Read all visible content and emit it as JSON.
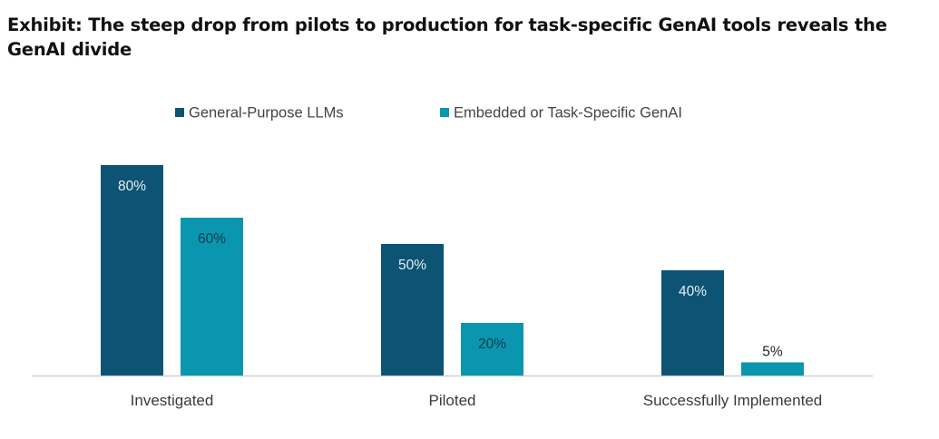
{
  "title": "Exhibit: The steep drop from pilots to production for task-specific GenAI tools reveals the GenAI divide",
  "chart_data": {
    "type": "bar",
    "categories": [
      "Investigated",
      "Piloted",
      "Successfully Implemented"
    ],
    "series": [
      {
        "name": "General-Purpose LLMs",
        "values": [
          80,
          50,
          40
        ],
        "labels": [
          "80%",
          "50%",
          "40%"
        ],
        "color": "#0d5474"
      },
      {
        "name": "Embedded or Task-Specific GenAI",
        "values": [
          60,
          20,
          5
        ],
        "labels": [
          "60%",
          "20%",
          "5%"
        ],
        "color": "#0b96b0"
      }
    ],
    "ylim": [
      0,
      100
    ],
    "grid": false,
    "legend": "top-center",
    "xlabel": "",
    "ylabel": ""
  }
}
